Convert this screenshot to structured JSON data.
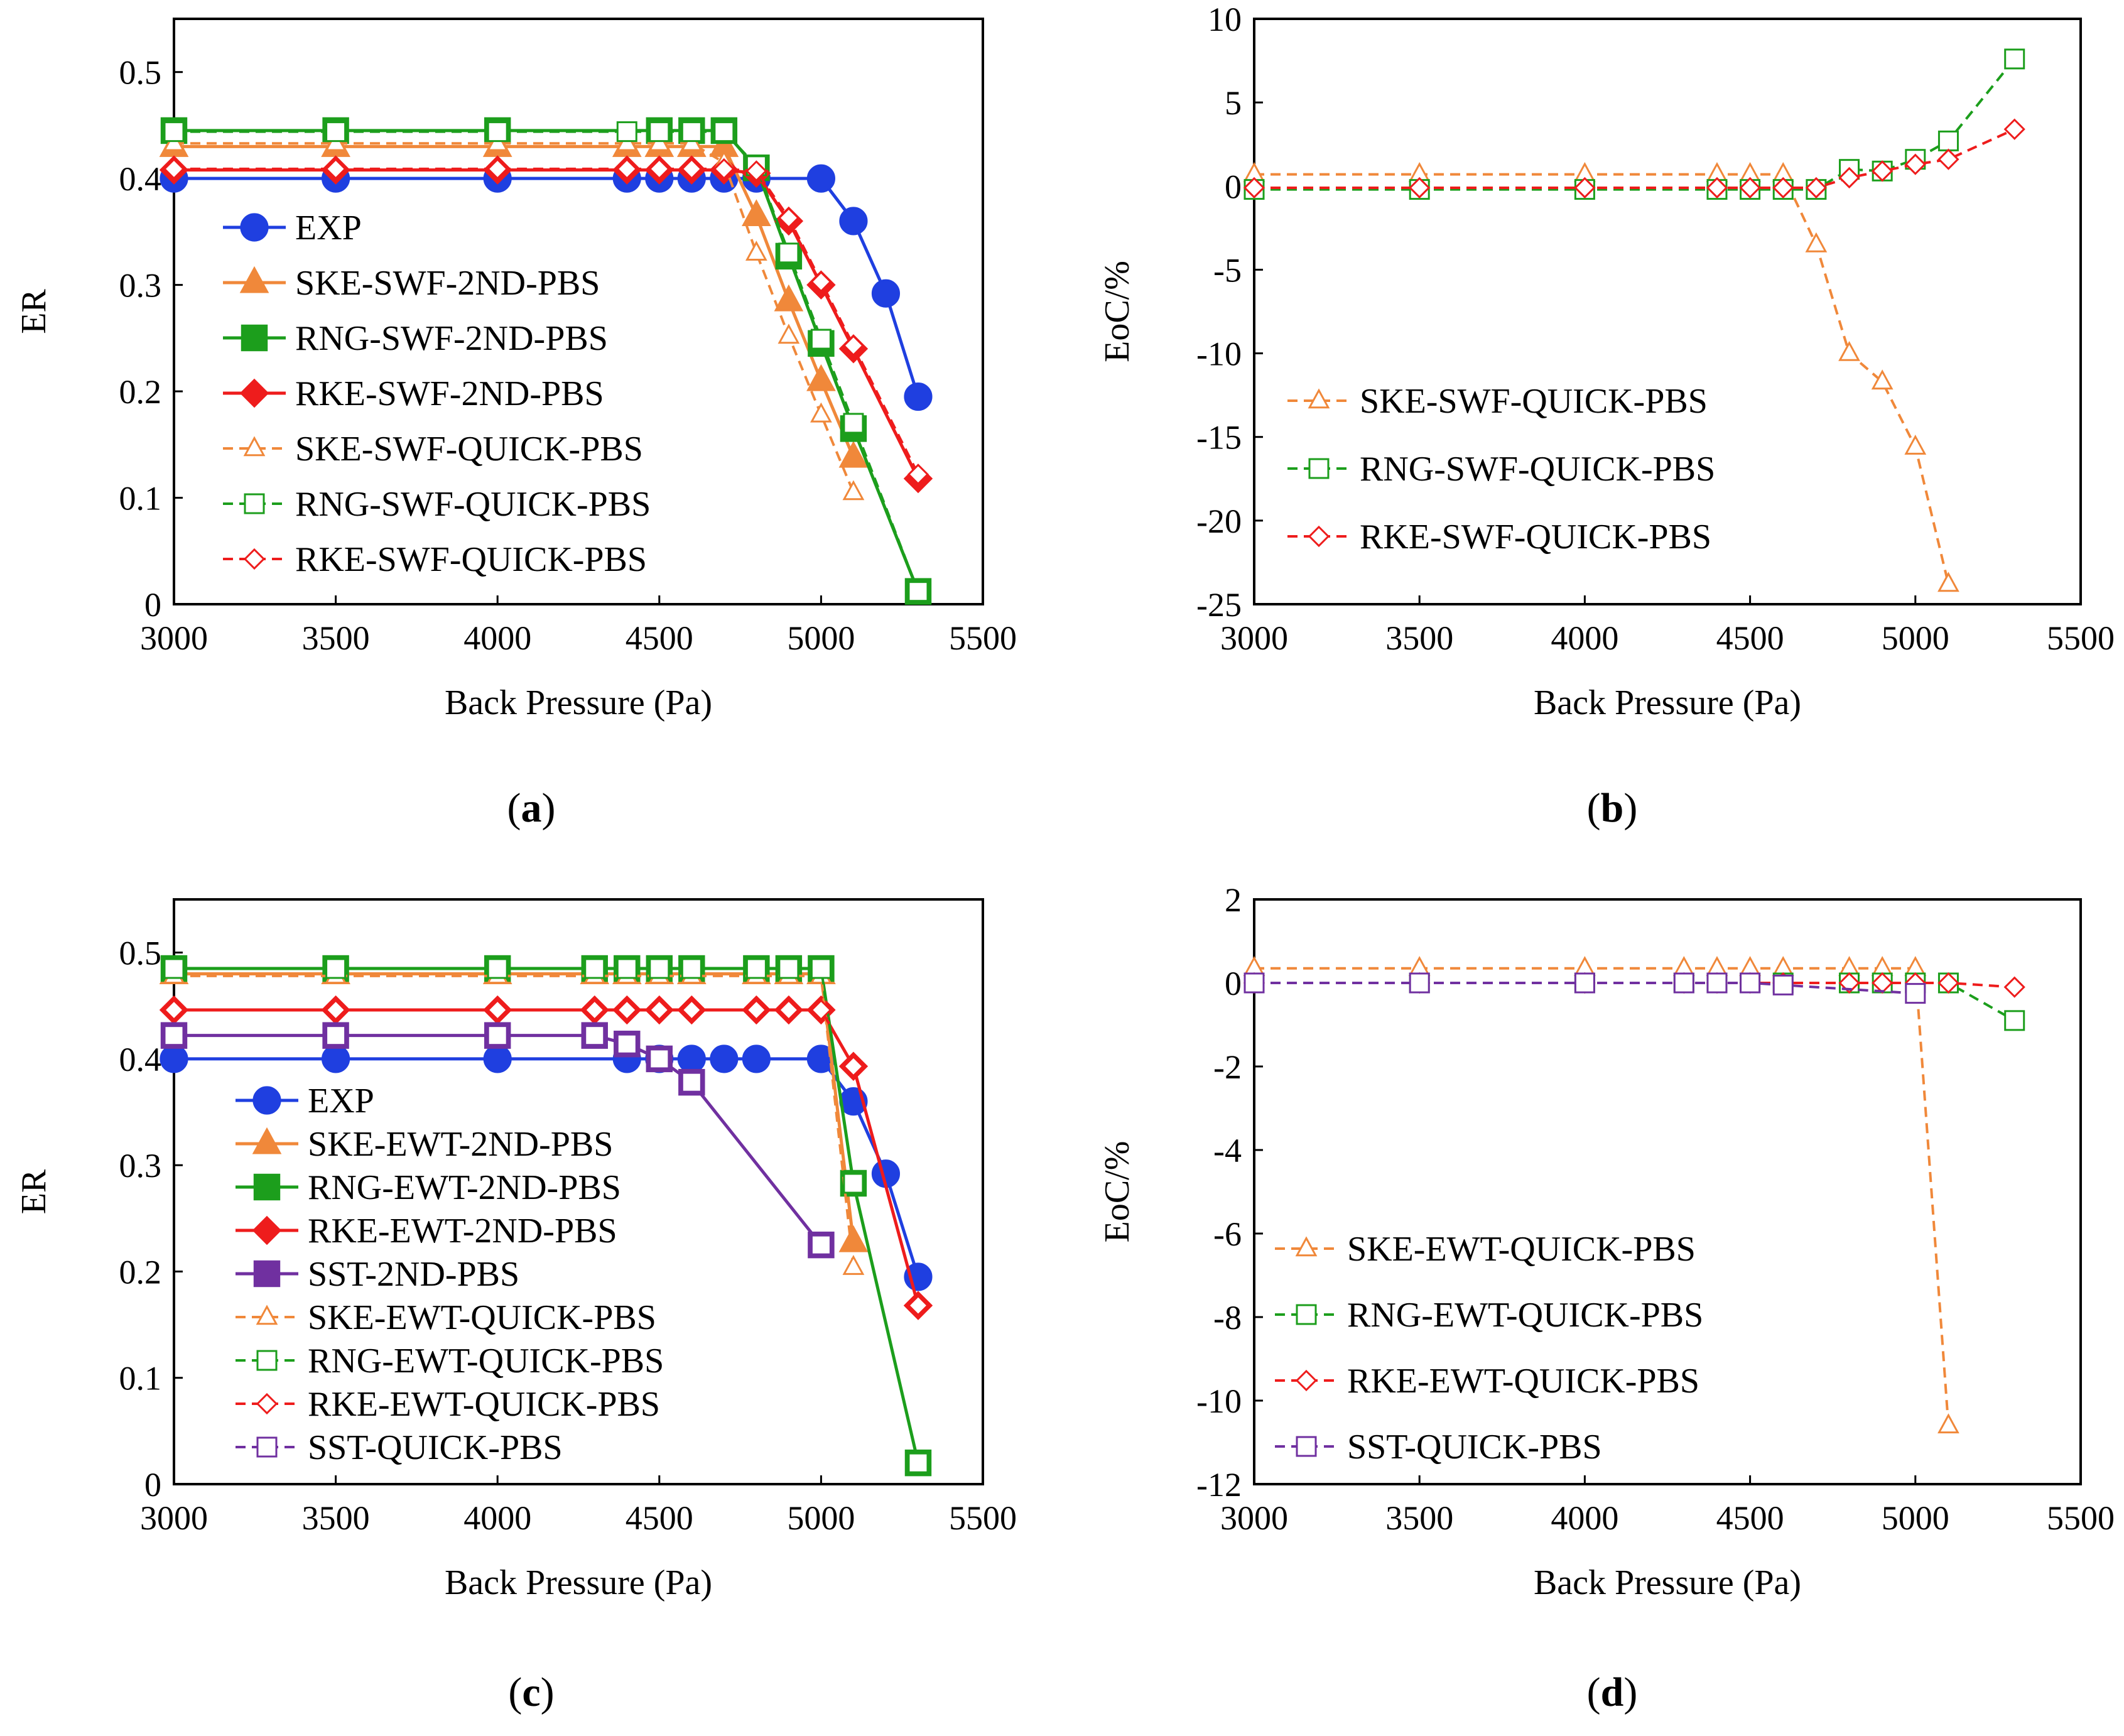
{
  "figure": {
    "panel_labels": [
      {
        "id": "a",
        "open": "(",
        "letter": "a",
        "close": ")"
      },
      {
        "id": "b",
        "open": "(",
        "letter": "b",
        "close": ")"
      },
      {
        "id": "c",
        "open": "(",
        "letter": "c",
        "close": ")"
      },
      {
        "id": "d",
        "open": "(",
        "letter": "d",
        "close": ")"
      }
    ]
  },
  "colors": {
    "EXP": "#1f3fe0",
    "SKE": "#f0883a",
    "RNG": "#1c9e1c",
    "RKE": "#ee1c1c",
    "SST": "#7030a0"
  },
  "chart_data": [
    {
      "id": "a",
      "type": "line",
      "xlabel": "Back Pressure (Pa)",
      "ylabel": "ER",
      "xlim": [
        3000,
        5500
      ],
      "xticks": [
        3000,
        3500,
        4000,
        4500,
        5000,
        5500
      ],
      "ylim": [
        0,
        0.55
      ],
      "yticks": [
        0,
        0.1,
        0.2,
        0.3,
        0.4,
        0.5
      ],
      "ytick_labels": [
        "0",
        "0.1",
        "0.2",
        "0.3",
        "0.4",
        "0.5"
      ],
      "legend_position": "lower-left",
      "series": [
        {
          "name": "EXP",
          "color": "EXP",
          "marker": "circle",
          "filled": true,
          "dashed": false,
          "x": [
            3000,
            3500,
            4000,
            4400,
            4500,
            4600,
            4700,
            4800,
            5000,
            5100,
            5200,
            5300
          ],
          "y": [
            0.4,
            0.4,
            0.4,
            0.4,
            0.4,
            0.4,
            0.4,
            0.4,
            0.4,
            0.36,
            0.292,
            0.195
          ]
        },
        {
          "name": "SKE-SWF-2ND-PBS",
          "color": "SKE",
          "marker": "triangle",
          "filled": true,
          "dashed": false,
          "x": [
            3000,
            3500,
            4000,
            4400,
            4500,
            4600,
            4700,
            4800,
            4900,
            5000,
            5100
          ],
          "y": [
            0.43,
            0.43,
            0.43,
            0.43,
            0.43,
            0.43,
            0.43,
            0.365,
            0.285,
            0.21,
            0.138
          ]
        },
        {
          "name": "RNG-SWF-2ND-PBS",
          "color": "RNG",
          "marker": "square",
          "filled": true,
          "dashed": false,
          "x": [
            3000,
            3500,
            4000,
            4500,
            4600,
            4700,
            4800,
            4900,
            5000,
            5100,
            5300
          ],
          "y": [
            0.445,
            0.445,
            0.445,
            0.445,
            0.445,
            0.445,
            0.41,
            0.327,
            0.245,
            0.165,
            0.012
          ]
        },
        {
          "name": "RKE-SWF-2ND-PBS",
          "color": "RKE",
          "marker": "diamond",
          "filled": true,
          "dashed": false,
          "x": [
            3000,
            3500,
            4000,
            4400,
            4500,
            4600,
            4700,
            4800,
            4900,
            5000,
            5100,
            5300
          ],
          "y": [
            0.408,
            0.408,
            0.408,
            0.408,
            0.408,
            0.408,
            0.408,
            0.405,
            0.36,
            0.3,
            0.24,
            0.118
          ]
        },
        {
          "name": "SKE-SWF-QUICK-PBS",
          "color": "SKE",
          "marker": "triangle",
          "filled": false,
          "dashed": true,
          "x": [
            3000,
            3500,
            4000,
            4400,
            4500,
            4600,
            4700,
            4800,
            4900,
            5000,
            5100
          ],
          "y": [
            0.433,
            0.433,
            0.433,
            0.433,
            0.433,
            0.433,
            0.415,
            0.33,
            0.252,
            0.178,
            0.105
          ]
        },
        {
          "name": "RNG-SWF-QUICK-PBS",
          "color": "RNG",
          "marker": "square",
          "filled": false,
          "dashed": true,
          "x": [
            3000,
            3500,
            4000,
            4400,
            4500,
            4600,
            4700,
            4800,
            4900,
            5000,
            5100,
            5300
          ],
          "y": [
            0.444,
            0.444,
            0.444,
            0.444,
            0.444,
            0.444,
            0.444,
            0.412,
            0.33,
            0.249,
            0.17,
            0.012
          ]
        },
        {
          "name": "RKE-SWF-QUICK-PBS",
          "color": "RKE",
          "marker": "diamond",
          "filled": false,
          "dashed": true,
          "x": [
            3000,
            3500,
            4000,
            4400,
            4500,
            4600,
            4700,
            4800,
            4900,
            5000,
            5100,
            5300
          ],
          "y": [
            0.409,
            0.409,
            0.409,
            0.409,
            0.409,
            0.409,
            0.409,
            0.407,
            0.363,
            0.303,
            0.243,
            0.122
          ]
        }
      ]
    },
    {
      "id": "b",
      "type": "line",
      "xlabel": "Back Pressure (Pa)",
      "ylabel": "EoC/%",
      "xlim": [
        3000,
        5500
      ],
      "xticks": [
        3000,
        3500,
        4000,
        4500,
        5000,
        5500
      ],
      "ylim": [
        -25,
        10
      ],
      "yticks": [
        -25,
        -20,
        -15,
        -10,
        -5,
        0,
        5,
        10
      ],
      "ytick_labels": [
        "-25",
        "-20",
        "-15",
        "-10",
        "-5",
        "0",
        "5",
        "10"
      ],
      "legend_position": "lower-left",
      "series": [
        {
          "name": "SKE-SWF-QUICK-PBS",
          "color": "SKE",
          "marker": "triangle",
          "filled": false,
          "dashed": true,
          "x": [
            3000,
            3500,
            4000,
            4400,
            4500,
            4600,
            4700,
            4800,
            4900,
            5000,
            5100
          ],
          "y": [
            0.7,
            0.7,
            0.7,
            0.7,
            0.7,
            0.7,
            -3.5,
            -10,
            -11.7,
            -15.6,
            -23.8
          ]
        },
        {
          "name": "RNG-SWF-QUICK-PBS",
          "color": "RNG",
          "marker": "square",
          "filled": false,
          "dashed": true,
          "x": [
            3000,
            3500,
            4000,
            4400,
            4500,
            4600,
            4700,
            4800,
            4900,
            5000,
            5100,
            5300
          ],
          "y": [
            -0.2,
            -0.2,
            -0.2,
            -0.2,
            -0.2,
            -0.2,
            -0.2,
            1.0,
            0.9,
            1.6,
            2.7,
            7.6
          ]
        },
        {
          "name": "RKE-SWF-QUICK-PBS",
          "color": "RKE",
          "marker": "diamond",
          "filled": false,
          "dashed": true,
          "x": [
            3000,
            3500,
            4000,
            4400,
            4500,
            4600,
            4700,
            4800,
            4900,
            5000,
            5100,
            5300
          ],
          "y": [
            -0.1,
            -0.1,
            -0.1,
            -0.1,
            -0.1,
            -0.1,
            -0.1,
            0.5,
            0.9,
            1.3,
            1.6,
            3.4
          ]
        }
      ]
    },
    {
      "id": "c",
      "type": "line",
      "xlabel": "Back Pressure (Pa)",
      "ylabel": "ER",
      "xlim": [
        3000,
        5500
      ],
      "xticks": [
        3000,
        3500,
        4000,
        4500,
        5000,
        5500
      ],
      "ylim": [
        0,
        0.55
      ],
      "yticks": [
        0,
        0.1,
        0.2,
        0.3,
        0.4,
        0.5
      ],
      "ytick_labels": [
        "0",
        "0.1",
        "0.2",
        "0.3",
        "0.4",
        "0.5"
      ],
      "legend_position": "lower-left",
      "series": [
        {
          "name": "EXP",
          "color": "EXP",
          "marker": "circle",
          "filled": true,
          "dashed": false,
          "x": [
            3000,
            3500,
            4000,
            4400,
            4500,
            4600,
            4700,
            4800,
            5000,
            5100,
            5200,
            5300
          ],
          "y": [
            0.4,
            0.4,
            0.4,
            0.4,
            0.4,
            0.4,
            0.4,
            0.4,
            0.4,
            0.36,
            0.292,
            0.195
          ]
        },
        {
          "name": "SKE-EWT-2ND-PBS",
          "color": "SKE",
          "marker": "triangle",
          "filled": true,
          "dashed": false,
          "x": [
            3000,
            3500,
            4000,
            4300,
            4400,
            4500,
            4600,
            4800,
            4900,
            5000,
            5100
          ],
          "y": [
            0.48,
            0.48,
            0.48,
            0.48,
            0.48,
            0.48,
            0.48,
            0.48,
            0.48,
            0.48,
            0.228
          ]
        },
        {
          "name": "RNG-EWT-2ND-PBS",
          "color": "RNG",
          "marker": "square",
          "filled": true,
          "dashed": false,
          "x": [
            3000,
            3500,
            4000,
            4300,
            4400,
            4500,
            4600,
            4800,
            4900,
            5000,
            5100,
            5300
          ],
          "y": [
            0.485,
            0.485,
            0.485,
            0.485,
            0.485,
            0.485,
            0.485,
            0.485,
            0.485,
            0.485,
            0.283,
            0.02
          ]
        },
        {
          "name": "RKE-EWT-2ND-PBS",
          "color": "RKE",
          "marker": "diamond",
          "filled": true,
          "dashed": false,
          "x": [
            3000,
            3500,
            4000,
            4300,
            4400,
            4500,
            4600,
            4800,
            4900,
            5000,
            5100,
            5300
          ],
          "y": [
            0.446,
            0.446,
            0.446,
            0.446,
            0.446,
            0.446,
            0.446,
            0.446,
            0.446,
            0.446,
            0.393,
            0.168
          ]
        },
        {
          "name": "SST-2ND-PBS",
          "color": "SST",
          "marker": "square",
          "filled": true,
          "dashed": false,
          "x": [
            3000,
            3500,
            4000,
            4300,
            4400,
            4500,
            4600,
            5000
          ],
          "y": [
            0.422,
            0.422,
            0.422,
            0.422,
            0.414,
            0.4,
            0.378,
            0.225
          ]
        },
        {
          "name": "SKE-EWT-QUICK-PBS",
          "color": "SKE",
          "marker": "triangle",
          "filled": false,
          "dashed": true,
          "x": [
            3000,
            3500,
            4000,
            4300,
            4400,
            4500,
            4600,
            4800,
            4900,
            5000,
            5100
          ],
          "y": [
            0.478,
            0.478,
            0.478,
            0.478,
            0.478,
            0.478,
            0.478,
            0.478,
            0.478,
            0.478,
            0.204
          ]
        },
        {
          "name": "RNG-EWT-QUICK-PBS",
          "color": "RNG",
          "marker": "square",
          "filled": false,
          "dashed": true,
          "x": [
            3000,
            3500,
            4000,
            4300,
            4400,
            4500,
            4600,
            4800,
            4900,
            5000,
            5100,
            5300
          ],
          "y": [
            0.485,
            0.485,
            0.485,
            0.485,
            0.485,
            0.485,
            0.485,
            0.485,
            0.485,
            0.485,
            0.283,
            0.02
          ]
        },
        {
          "name": "RKE-EWT-QUICK-PBS",
          "color": "RKE",
          "marker": "diamond",
          "filled": false,
          "dashed": true,
          "x": [
            3000,
            3500,
            4000,
            4300,
            4400,
            4500,
            4600,
            4800,
            4900,
            5000,
            5100,
            5300
          ],
          "y": [
            0.446,
            0.446,
            0.446,
            0.446,
            0.446,
            0.446,
            0.446,
            0.446,
            0.446,
            0.446,
            0.393,
            0.168
          ]
        },
        {
          "name": "SST-QUICK-PBS",
          "color": "SST",
          "marker": "square",
          "filled": false,
          "dashed": true,
          "x": [
            3000,
            3500,
            4000,
            4300,
            4400,
            4500,
            4600,
            5000
          ],
          "y": [
            0.422,
            0.422,
            0.422,
            0.422,
            0.414,
            0.4,
            0.378,
            0.225
          ]
        }
      ]
    },
    {
      "id": "d",
      "type": "line",
      "xlabel": "Back Pressure (Pa)",
      "ylabel": "EoC/%",
      "xlim": [
        3000,
        5500
      ],
      "xticks": [
        3000,
        3500,
        4000,
        4500,
        5000,
        5500
      ],
      "ylim": [
        -12,
        2
      ],
      "yticks": [
        -12,
        -10,
        -8,
        -6,
        -4,
        -2,
        0,
        2
      ],
      "ytick_labels": [
        "-12",
        "-10",
        "-8",
        "-6",
        "-4",
        "-2",
        "0",
        "2"
      ],
      "legend_position": "lower-left",
      "series": [
        {
          "name": "SKE-EWT-QUICK-PBS",
          "color": "SKE",
          "marker": "triangle",
          "filled": false,
          "dashed": true,
          "x": [
            3000,
            3500,
            4000,
            4300,
            4400,
            4500,
            4600,
            4800,
            4900,
            5000,
            5100
          ],
          "y": [
            0.35,
            0.35,
            0.35,
            0.35,
            0.35,
            0.35,
            0.35,
            0.35,
            0.35,
            0.35,
            -10.6
          ]
        },
        {
          "name": "RNG-EWT-QUICK-PBS",
          "color": "RNG",
          "marker": "square",
          "filled": false,
          "dashed": true,
          "x": [
            3000,
            3500,
            4000,
            4300,
            4400,
            4500,
            4600,
            4800,
            4900,
            5000,
            5100,
            5300
          ],
          "y": [
            0,
            0,
            0,
            0,
            0,
            0,
            0,
            0,
            0,
            0,
            0,
            -0.9
          ]
        },
        {
          "name": "RKE-EWT-QUICK-PBS",
          "color": "RKE",
          "marker": "diamond",
          "filled": false,
          "dashed": true,
          "x": [
            3000,
            3500,
            4000,
            4300,
            4400,
            4500,
            4600,
            4800,
            4900,
            5000,
            5100,
            5300
          ],
          "y": [
            0,
            0,
            0,
            0,
            0,
            0,
            0,
            0,
            0,
            0,
            0,
            -0.1
          ]
        },
        {
          "name": "SST-QUICK-PBS",
          "color": "SST",
          "marker": "square",
          "filled": false,
          "dashed": true,
          "x": [
            3000,
            3500,
            4000,
            4300,
            4400,
            4500,
            4600,
            5000
          ],
          "y": [
            0,
            0,
            0,
            0,
            0,
            0,
            -0.05,
            -0.25
          ]
        }
      ]
    }
  ]
}
